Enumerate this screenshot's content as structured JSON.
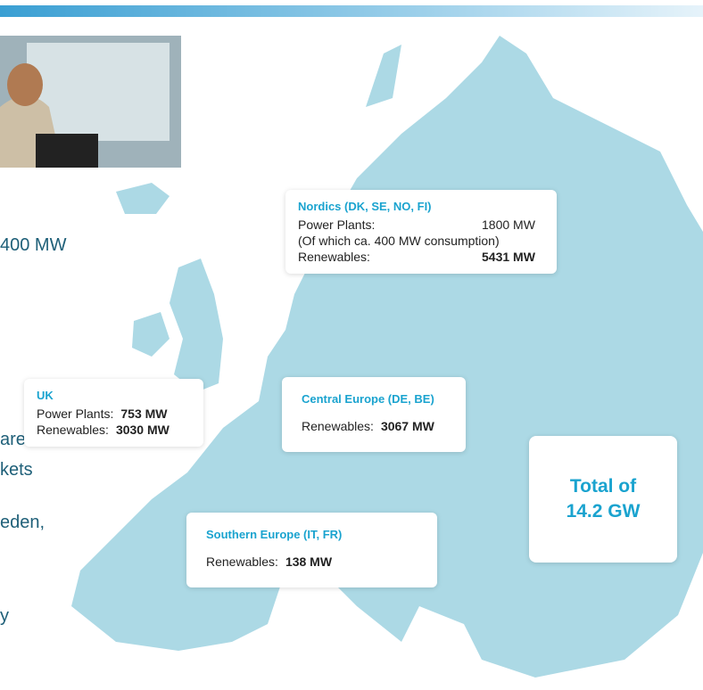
{
  "left_text": [
    "400 MW",
    "are",
    "kets",
    "eden,",
    "y"
  ],
  "cards": [
    {
      "title": "Nordics (DK, SE, NO, FI)",
      "rows": [
        {
          "label": "Power Plants:",
          "value": "1800 MW",
          "bold": false
        },
        {
          "label": "(Of which ca. 400 MW consumption)"
        },
        {
          "label": "Renewables:",
          "value": "5431 MW",
          "bold": true
        }
      ]
    },
    {
      "title": "UK",
      "rows": [
        {
          "label": "Power Plants:",
          "value": "753 MW",
          "bold": true
        },
        {
          "label": "Renewables:",
          "value": "3030 MW",
          "bold": true
        }
      ]
    },
    {
      "title": "Central Europe (DE, BE)",
      "rows": [
        {
          "label": "Renewables:",
          "value": "3067 MW",
          "bold": true
        }
      ]
    },
    {
      "title": "Southern Europe (IT, FR)",
      "rows": [
        {
          "label": "Renewables:",
          "value": "138 MW",
          "bold": true
        }
      ]
    }
  ],
  "total": {
    "line1": "Total of",
    "line2": "14.2 GW"
  }
}
